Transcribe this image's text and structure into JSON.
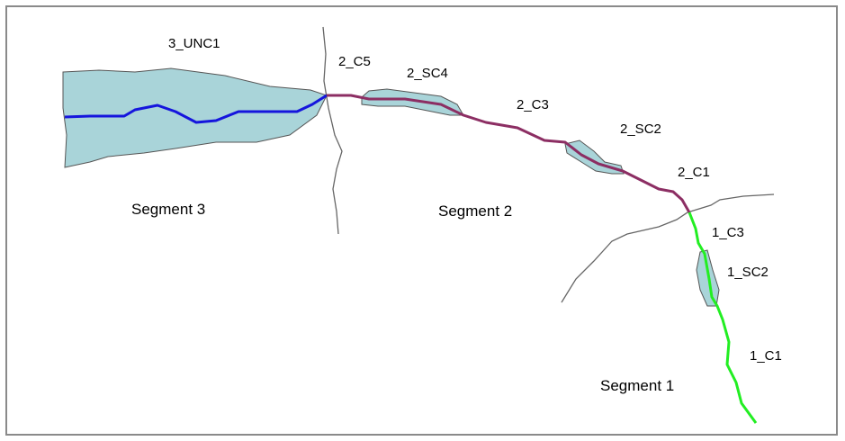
{
  "colors": {
    "polygon_fill": "#a9d4d9",
    "polygon_stroke": "#555555",
    "segment_1_line": "#22ee22",
    "segment_2_line": "#8c2e63",
    "segment_3_line": "#1515dd",
    "boundary_line": "#666666"
  },
  "labels": {
    "unc1": "3_UNC1",
    "c5_2": "2_C5",
    "sc4_2": "2_SC4",
    "c3_2": "2_C3",
    "sc2_2": "2_SC2",
    "c1_2": "2_C1",
    "c3_1": "1_C3",
    "sc2_1": "1_SC2",
    "c1_1": "1_C1"
  },
  "segments": {
    "segment_3": "Segment 3",
    "segment_2": "Segment 2",
    "segment_1": "Segment 1"
  }
}
